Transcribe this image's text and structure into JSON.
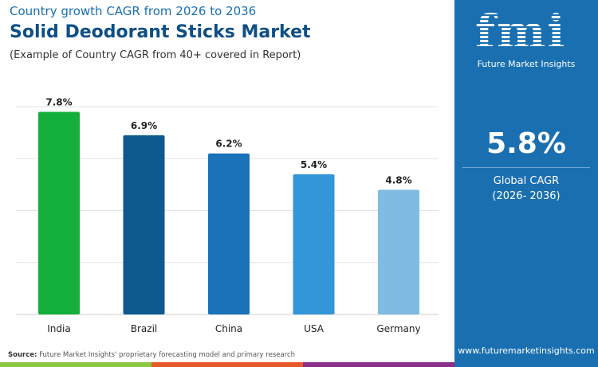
{
  "header": {
    "subtitle_top": "Country growth CAGR from 2026 to 2036",
    "title": "Solid Deodorant Sticks Market",
    "note": "(Example of Country CAGR from 40+ covered in Report)"
  },
  "chart_data": {
    "type": "bar",
    "categories": [
      "India",
      "Brazil",
      "China",
      "USA",
      "Germany"
    ],
    "values": [
      7.8,
      6.9,
      6.2,
      5.4,
      4.8
    ],
    "labels": [
      "7.8%",
      "6.9%",
      "6.2%",
      "5.4%",
      "4.8%"
    ],
    "colors": [
      "#12b03b",
      "#0e5a8e",
      "#1a72b8",
      "#3396d8",
      "#7fbbe3"
    ],
    "ylim": [
      0,
      8
    ],
    "grid": true,
    "title": "",
    "xlabel": "",
    "ylabel": ""
  },
  "footer": {
    "source_label": "Source:",
    "source_text": " Future Market Insights' proprietary forecasting model and primary research",
    "strip_colors": [
      "#8dc63f",
      "#e8592a",
      "#8a2f8a"
    ]
  },
  "panel": {
    "logo": "fmi",
    "logo_sub": "Future Market Insights",
    "cagr_value": "5.8%",
    "cagr_label": "Global CAGR",
    "cagr_period": "(2026- 2036)",
    "website": "www.futuremarketinsights.com",
    "color": "#1a6fb0"
  }
}
